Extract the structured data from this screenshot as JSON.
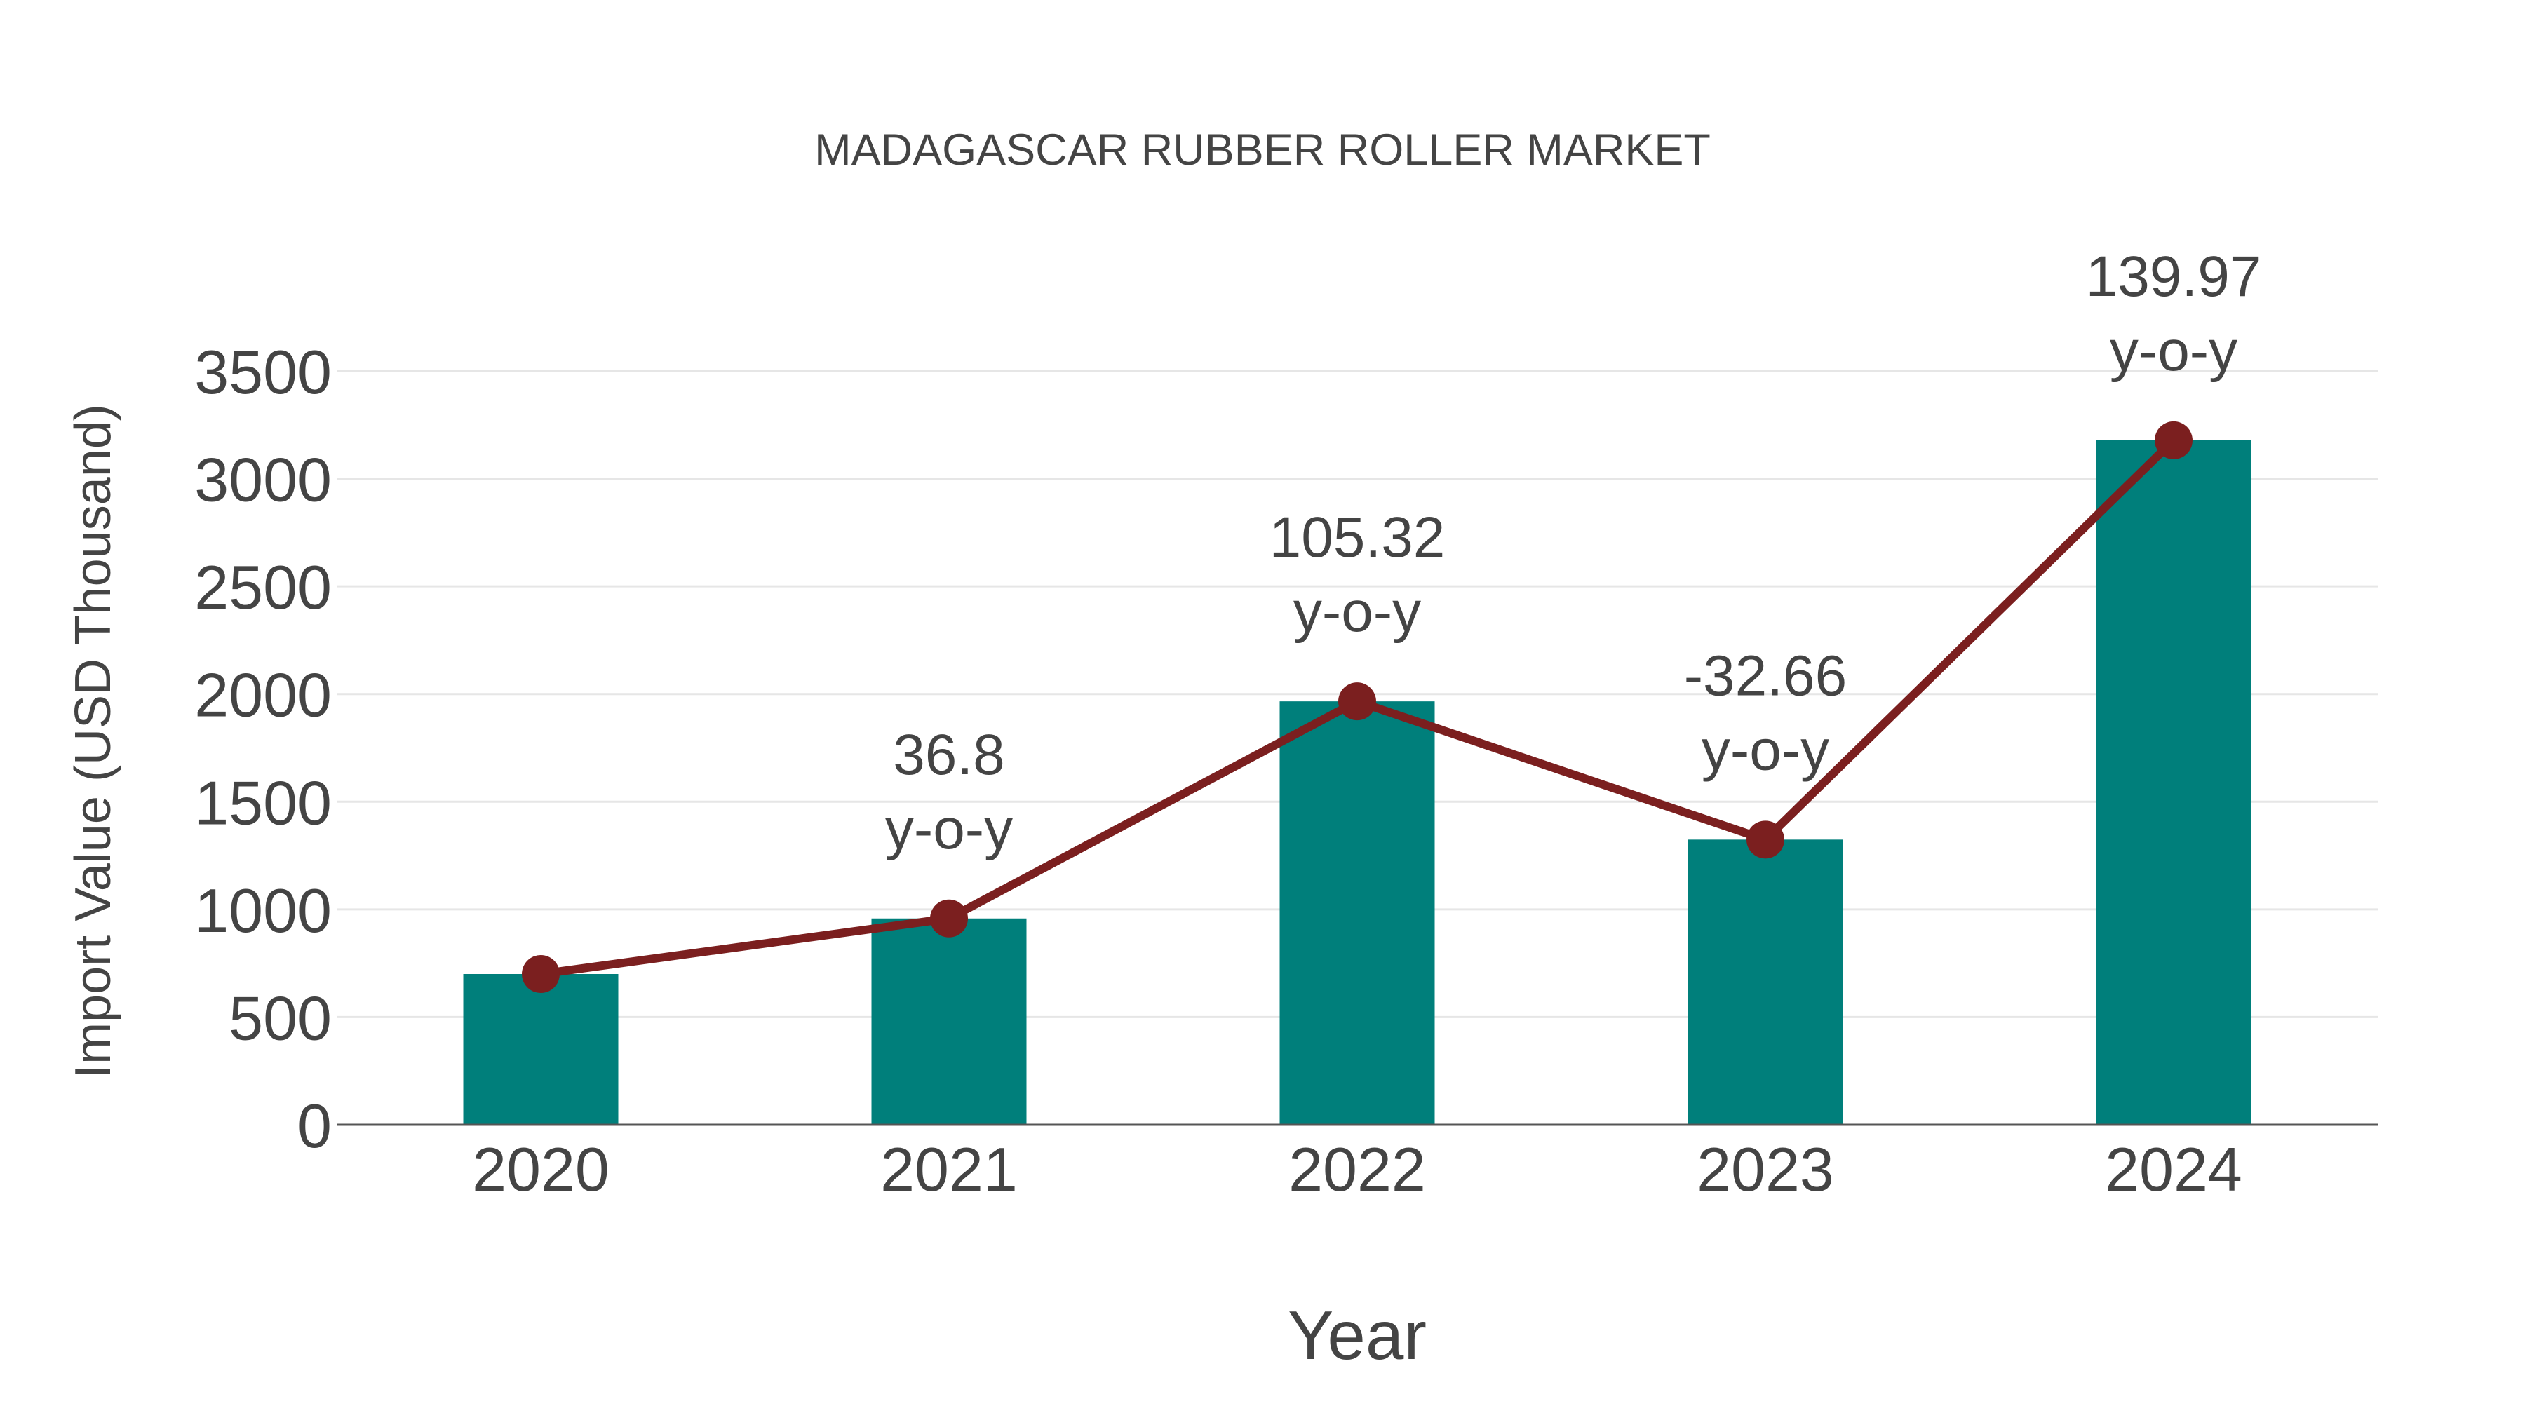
{
  "header": {
    "title": "MADAGASCAR RUBBER ROLLER MARKET"
  },
  "axes": {
    "x_title": "Year",
    "y_title": "Import Value (USD Thousand)"
  },
  "colors": {
    "bar": "#007F7B",
    "line": "#7B1F1F",
    "text": "#444444",
    "grid": "#E6E6E6",
    "axis": "#555555"
  },
  "chart_data": {
    "type": "bar",
    "title": "MADAGASCAR RUBBER ROLLER MARKET",
    "xlabel": "Year",
    "ylabel": "Import Value (USD Thousand)",
    "categories": [
      "2020",
      "2021",
      "2022",
      "2023",
      "2024"
    ],
    "series": [
      {
        "name": "Import Value",
        "type": "bar",
        "values": [
          700,
          958,
          1966,
          1324,
          3178
        ]
      },
      {
        "name": "Import Value trend",
        "type": "line",
        "values": [
          700,
          958,
          1966,
          1324,
          3178
        ]
      }
    ],
    "annotations": [
      {
        "category": "2021",
        "value": "36.8",
        "suffix": "y-o-y"
      },
      {
        "category": "2022",
        "value": "105.32",
        "suffix": "y-o-y"
      },
      {
        "category": "2023",
        "value": "-32.66",
        "suffix": "y-o-y"
      },
      {
        "category": "2024",
        "value": "139.97",
        "suffix": "y-o-y"
      }
    ],
    "yticks": [
      0,
      500,
      1000,
      1500,
      2000,
      2500,
      3000,
      3500
    ],
    "ylim": [
      0,
      3500
    ],
    "grid": true,
    "legend": "none"
  }
}
